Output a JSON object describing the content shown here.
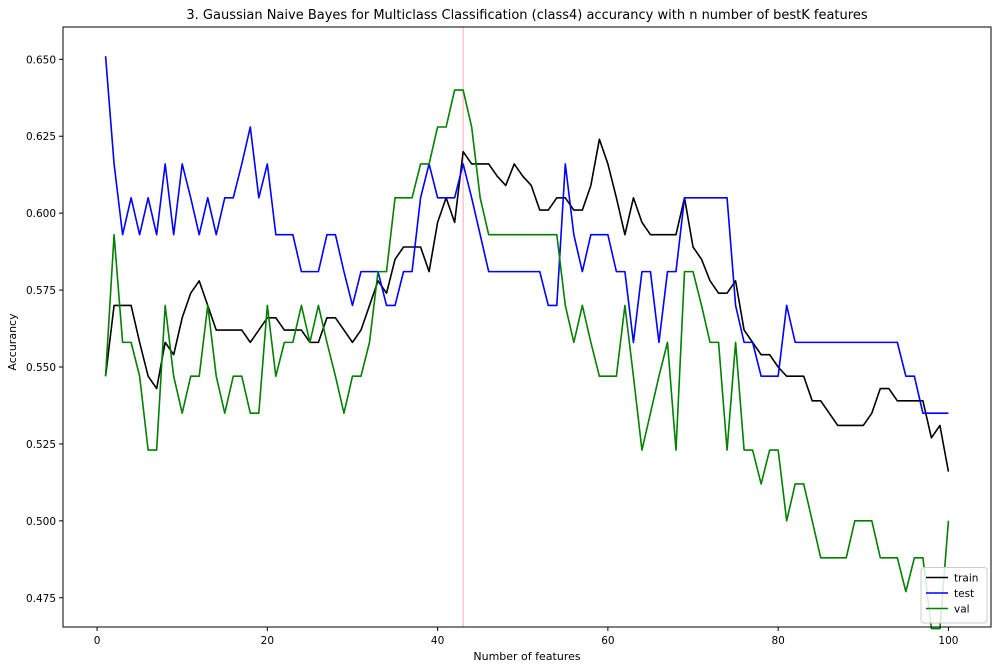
{
  "chart_data": {
    "type": "line",
    "title": "3. Gaussian Naive Bayes for Multiclass Classification (class4) accurancy with n number of bestK features",
    "xlabel": "Number of features",
    "ylabel": "Accurancy",
    "xlim": [
      -4,
      105
    ],
    "ylim": [
      0.4655,
      0.6605
    ],
    "xticks": [
      0,
      20,
      40,
      60,
      80,
      100
    ],
    "yticks": [
      0.475,
      0.5,
      0.525,
      0.55,
      0.575,
      0.6,
      0.625,
      0.65
    ],
    "ytick_labels": [
      "0.475",
      "0.500",
      "0.525",
      "0.550",
      "0.575",
      "0.600",
      "0.625",
      "0.650"
    ],
    "vline": {
      "x": 43,
      "color": "#ffb6c1"
    },
    "legend_position": "lower-right",
    "grid": false,
    "x": [
      1,
      2,
      3,
      4,
      5,
      6,
      7,
      8,
      9,
      10,
      11,
      12,
      13,
      14,
      15,
      16,
      17,
      18,
      19,
      20,
      21,
      22,
      23,
      24,
      25,
      26,
      27,
      28,
      29,
      30,
      31,
      32,
      33,
      34,
      35,
      36,
      37,
      38,
      39,
      40,
      41,
      42,
      43,
      44,
      45,
      46,
      47,
      48,
      49,
      50,
      51,
      52,
      53,
      54,
      55,
      56,
      57,
      58,
      59,
      60,
      61,
      62,
      63,
      64,
      65,
      66,
      67,
      68,
      69,
      70,
      71,
      72,
      73,
      74,
      75,
      76,
      77,
      78,
      79,
      80,
      81,
      82,
      83,
      84,
      85,
      86,
      87,
      88,
      89,
      90,
      91,
      92,
      93,
      94,
      95,
      96,
      97,
      98,
      99,
      100
    ],
    "series": [
      {
        "name": "train",
        "color": "#000000",
        "values": [
          0.547,
          0.57,
          0.57,
          0.57,
          0.558,
          0.547,
          0.543,
          0.558,
          0.554,
          0.566,
          0.574,
          0.578,
          0.57,
          0.562,
          0.562,
          0.562,
          0.562,
          0.558,
          0.562,
          0.566,
          0.566,
          0.562,
          0.562,
          0.562,
          0.558,
          0.558,
          0.566,
          0.566,
          0.562,
          0.558,
          0.562,
          0.57,
          0.578,
          0.574,
          0.585,
          0.589,
          0.589,
          0.589,
          0.581,
          0.597,
          0.605,
          0.597,
          0.62,
          0.616,
          0.616,
          0.616,
          0.612,
          0.609,
          0.616,
          0.612,
          0.609,
          0.601,
          0.601,
          0.605,
          0.605,
          0.601,
          0.601,
          0.609,
          0.624,
          0.616,
          0.605,
          0.593,
          0.605,
          0.597,
          0.593,
          0.593,
          0.593,
          0.593,
          0.605,
          0.589,
          0.585,
          0.578,
          0.574,
          0.574,
          0.578,
          0.562,
          0.558,
          0.554,
          0.554,
          0.55,
          0.547,
          0.547,
          0.547,
          0.539,
          0.539,
          0.535,
          0.531,
          0.531,
          0.531,
          0.531,
          0.535,
          0.543,
          0.543,
          0.539,
          0.539,
          0.539,
          0.539,
          0.527,
          0.531,
          0.516
        ]
      },
      {
        "name": "test",
        "color": "#0000ff",
        "values": [
          0.651,
          0.616,
          0.593,
          0.605,
          0.593,
          0.605,
          0.593,
          0.616,
          0.593,
          0.616,
          0.605,
          0.593,
          0.605,
          0.593,
          0.605,
          0.605,
          0.616,
          0.628,
          0.605,
          0.616,
          0.593,
          0.593,
          0.593,
          0.581,
          0.581,
          0.581,
          0.593,
          0.593,
          0.581,
          0.57,
          0.581,
          0.581,
          0.581,
          0.57,
          0.57,
          0.581,
          0.581,
          0.605,
          0.616,
          0.605,
          0.605,
          0.605,
          0.616,
          0.605,
          0.593,
          0.581,
          0.581,
          0.581,
          0.581,
          0.581,
          0.581,
          0.581,
          0.57,
          0.57,
          0.616,
          0.593,
          0.581,
          0.593,
          0.593,
          0.593,
          0.581,
          0.581,
          0.558,
          0.581,
          0.581,
          0.558,
          0.581,
          0.581,
          0.605,
          0.605,
          0.605,
          0.605,
          0.605,
          0.605,
          0.57,
          0.558,
          0.558,
          0.547,
          0.547,
          0.547,
          0.57,
          0.558,
          0.558,
          0.558,
          0.558,
          0.558,
          0.558,
          0.558,
          0.558,
          0.558,
          0.558,
          0.558,
          0.558,
          0.558,
          0.547,
          0.547,
          0.535,
          0.535,
          0.535,
          0.535
        ]
      },
      {
        "name": "val",
        "color": "#008000",
        "values": [
          0.547,
          0.593,
          0.558,
          0.558,
          0.547,
          0.523,
          0.523,
          0.57,
          0.547,
          0.535,
          0.547,
          0.547,
          0.57,
          0.547,
          0.535,
          0.547,
          0.547,
          0.535,
          0.535,
          0.57,
          0.547,
          0.558,
          0.558,
          0.57,
          0.558,
          0.57,
          0.558,
          0.547,
          0.535,
          0.547,
          0.547,
          0.558,
          0.581,
          0.581,
          0.605,
          0.605,
          0.605,
          0.616,
          0.616,
          0.628,
          0.628,
          0.64,
          0.64,
          0.628,
          0.605,
          0.593,
          0.593,
          0.593,
          0.593,
          0.593,
          0.593,
          0.593,
          0.593,
          0.593,
          0.57,
          0.558,
          0.57,
          0.558,
          0.547,
          0.547,
          0.547,
          0.57,
          0.547,
          0.523,
          0.535,
          0.547,
          0.558,
          0.523,
          0.581,
          0.581,
          0.57,
          0.558,
          0.558,
          0.523,
          0.558,
          0.523,
          0.523,
          0.512,
          0.523,
          0.523,
          0.5,
          0.512,
          0.512,
          0.5,
          0.488,
          0.488,
          0.488,
          0.488,
          0.5,
          0.5,
          0.5,
          0.488,
          0.488,
          0.488,
          0.477,
          0.488,
          0.488,
          0.465,
          0.465,
          0.5
        ]
      }
    ]
  }
}
